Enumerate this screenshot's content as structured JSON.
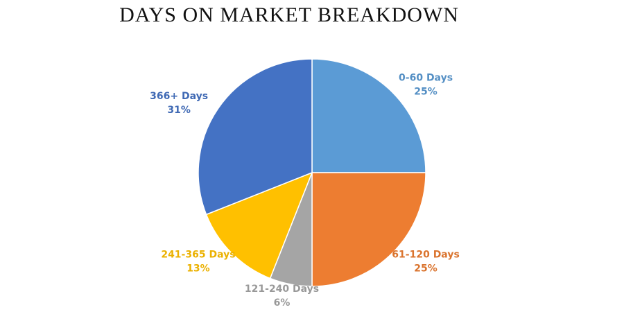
{
  "chart_data": {
    "type": "pie",
    "title": "DAYS ON MARKET BREAKDOWN",
    "categories": [
      "0-60 Days",
      "61-120 Days",
      "121-240 Days",
      "241-365 Days",
      "366+ Days"
    ],
    "values": [
      25,
      25,
      6,
      13,
      31
    ],
    "value_labels": [
      "25%",
      "25%",
      "6%",
      "13%",
      "31%"
    ],
    "colors": [
      "#5b9bd5",
      "#ed7d31",
      "#a5a5a5",
      "#ffc000",
      "#4472c4"
    ]
  }
}
